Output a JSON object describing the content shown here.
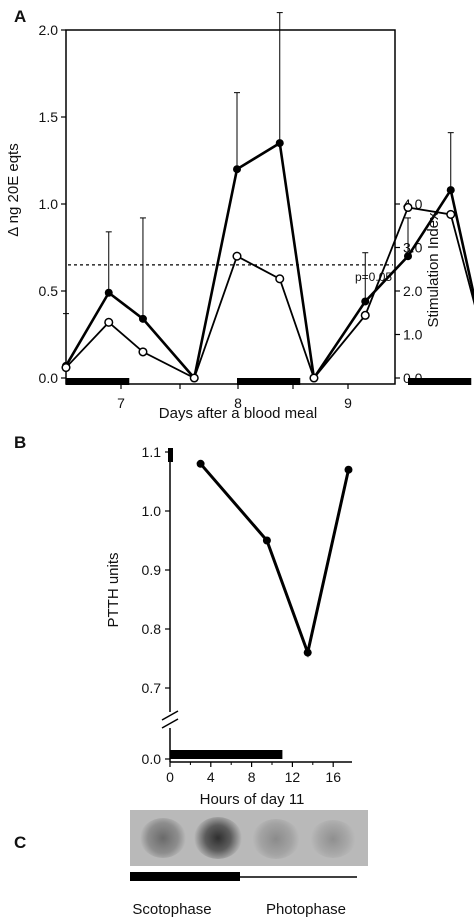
{
  "panels": {
    "a": {
      "letter": "A",
      "chart_data": {
        "type": "line",
        "xlabel": "Days after a blood meal",
        "ylabel": "Δ ng 20E eqts",
        "y2label": "Stimulation Index",
        "xticks": [
          "7",
          "8",
          "9"
        ],
        "yticks": [
          "0.0",
          "0.5",
          "1.0",
          "1.5",
          "2.0"
        ],
        "y2ticks": [
          "0.0",
          "1.0",
          "2.0",
          "3.0",
          "4.0"
        ],
        "ylim": [
          -0.08,
          2.2
        ],
        "y2lim": [
          0,
          4.0
        ],
        "threshold": {
          "value": 0.65,
          "label": "p=0.05"
        },
        "series": [
          {
            "marker": "filled-circle",
            "x": [
              6.55,
              6.8,
              7.0,
              7.3,
              7.55,
              7.8,
              8.0,
              8.3,
              8.55,
              8.8,
              9.0
            ],
            "y": [
              0.07,
              0.49,
              0.34,
              0.0,
              1.2,
              1.35,
              0.0,
              0.44,
              0.7,
              1.08,
              0.19
            ],
            "err": [
              0.3,
              0.35,
              0.58,
              0,
              0.44,
              0.75,
              0,
              0.28,
              0.22,
              0.33,
              0.28
            ]
          },
          {
            "marker": "open-circle",
            "x": [
              6.55,
              6.8,
              7.0,
              7.3,
              7.55,
              7.8,
              8.0,
              8.3,
              8.55,
              8.8,
              9.0
            ],
            "y": [
              0.06,
              0.32,
              0.15,
              0.0,
              0.7,
              0.57,
              0.0,
              0.36,
              0.98,
              0.94,
              0.2
            ]
          }
        ],
        "scotophase_bars": [
          [
            6.55,
            6.92
          ],
          [
            7.55,
            7.92
          ],
          [
            8.55,
            8.92
          ]
        ]
      }
    },
    "b": {
      "letter": "B",
      "chart_data": {
        "type": "line",
        "xlabel": "Hours of day 11",
        "ylabel": "PTTH units",
        "xticks": [
          "0",
          "4",
          "8",
          "12",
          "16"
        ],
        "yticks": [
          "0.7",
          "0.8",
          "0.9",
          "1.0",
          "1.1"
        ],
        "extra_ytick": "0.0",
        "ylim": [
          0.65,
          1.15
        ],
        "xlim": [
          0,
          17.5
        ],
        "series": [
          {
            "marker": "filled-circle",
            "x": [
              3,
              9.5,
              13.5,
              17.5
            ],
            "y": [
              1.08,
              0.95,
              0.76,
              1.07
            ]
          }
        ],
        "scotophase_bar": [
          0,
          12
        ]
      }
    },
    "c": {
      "letter": "C",
      "scotophase_label": "Scotophase",
      "photophase_label": "Photophase"
    }
  }
}
